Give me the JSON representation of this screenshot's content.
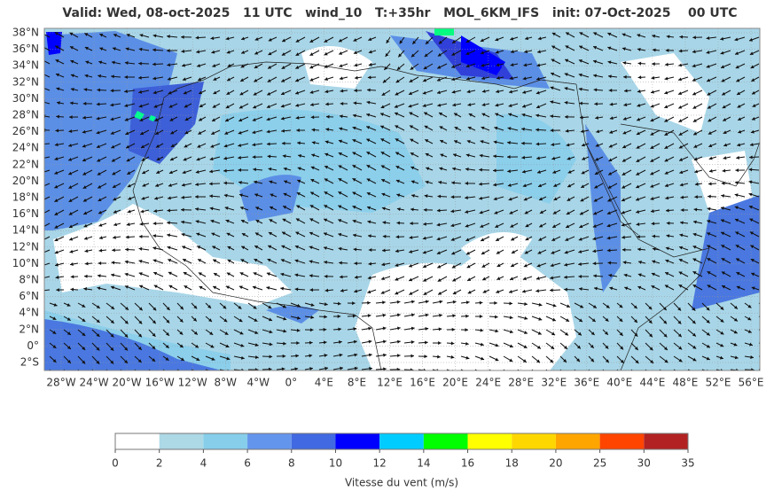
{
  "header": {
    "title": "Valid: Wed, 08-oct-2025   11 UTC   wind_10   T:+35hr   MOL_6KM_IFS   init: 07-Oct-2025    00 UTC"
  },
  "map": {
    "lat_labels": [
      "38°N",
      "36°N",
      "34°N",
      "32°N",
      "30°N",
      "28°N",
      "26°N",
      "24°N",
      "22°N",
      "20°N",
      "18°N",
      "16°N",
      "14°N",
      "12°N",
      "10°N",
      "8°N",
      "6°N",
      "4°N",
      "2°N",
      "0°",
      "2°S"
    ],
    "lon_labels": [
      "28°W",
      "24°W",
      "20°W",
      "16°W",
      "12°W",
      "8°W",
      "4°W",
      "0°",
      "4°E",
      "8°E",
      "12°E",
      "16°E",
      "20°E",
      "24°E",
      "28°E",
      "32°E",
      "36°E",
      "40°E",
      "44°E",
      "48°E",
      "52°E",
      "56°E"
    ]
  },
  "colorbar": {
    "ticks": [
      0,
      2,
      4,
      6,
      8,
      10,
      12,
      14,
      16,
      18,
      20,
      25,
      30,
      35
    ],
    "colors": [
      "#ffffff",
      "#add8e6",
      "#87ceeb",
      "#6495ed",
      "#4169e1",
      "#0000ff",
      "#00ccff",
      "#00ff00",
      "#ffff00",
      "#ffd700",
      "#ffa500",
      "#ff4500",
      "#b22222"
    ],
    "label": "Vitesse du vent (m/s)"
  }
}
